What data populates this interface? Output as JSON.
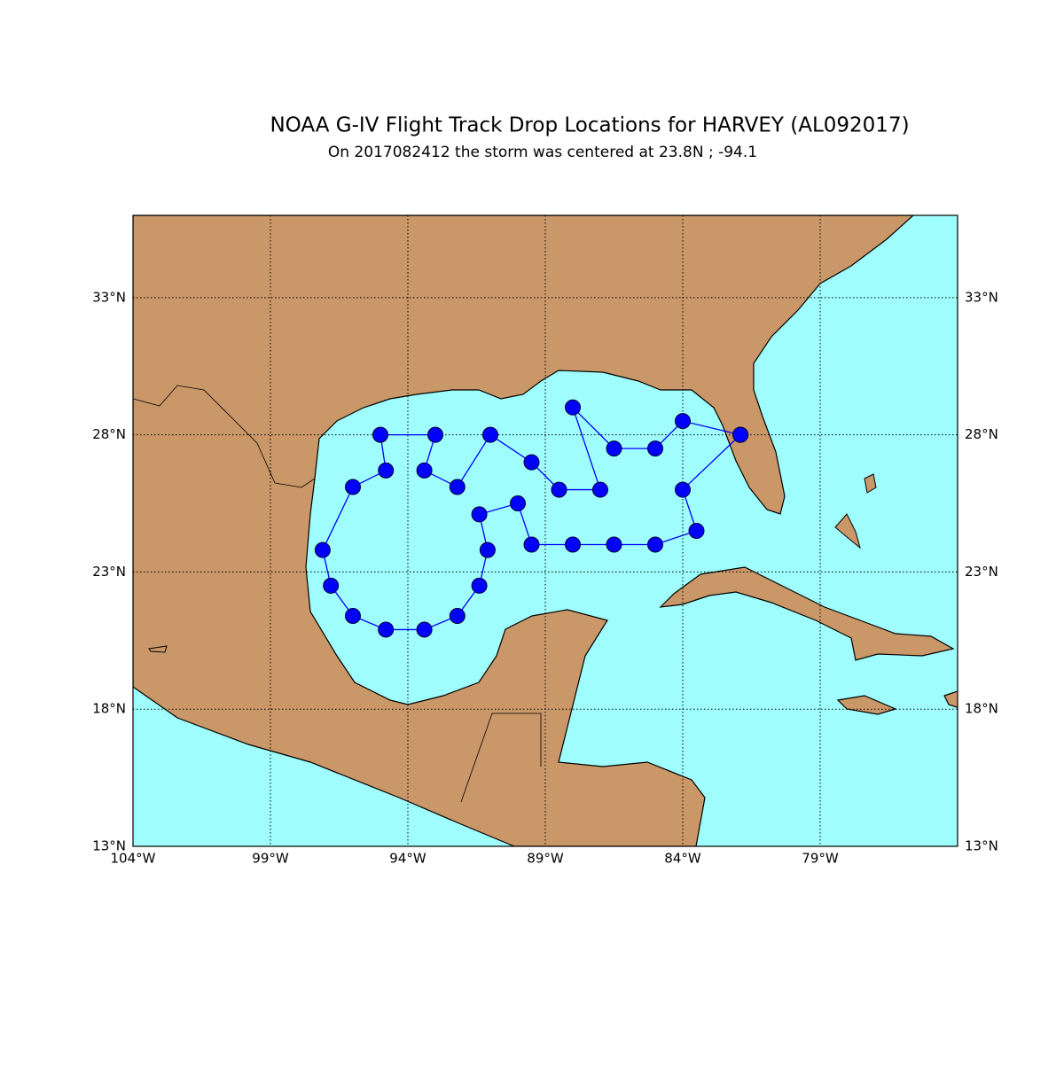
{
  "chart_data": {
    "type": "map",
    "title": "NOAA G-IV Flight Track Drop Locations for HARVEY (AL092017)",
    "subtitle": "On 2017082412 the storm was centered at 23.8N ; -94.1",
    "xlim": [
      -104,
      -74
    ],
    "ylim": [
      13,
      36
    ],
    "xticks": [
      {
        "value": -104,
        "label": "104°W"
      },
      {
        "value": -99,
        "label": "99°W"
      },
      {
        "value": -94,
        "label": "94°W"
      },
      {
        "value": -89,
        "label": "89°W"
      },
      {
        "value": -84,
        "label": "84°W"
      },
      {
        "value": -79,
        "label": "79°W"
      }
    ],
    "yticks": [
      {
        "value": 13,
        "label": "13°N"
      },
      {
        "value": 18,
        "label": "18°N"
      },
      {
        "value": 23,
        "label": "23°N"
      },
      {
        "value": 28,
        "label": "28°N"
      },
      {
        "value": 33,
        "label": "33°N"
      }
    ],
    "grid": true,
    "color": "#0000ff",
    "x": [
      -81.9,
      -84.0,
      -85.0,
      -86.5,
      -88.0,
      -87.0,
      -88.5,
      -89.5,
      -91.0,
      -92.2,
      -93.4,
      -93.0,
      -95.0,
      -94.8,
      -96.0,
      -97.1,
      -96.8,
      -96.0,
      -94.8,
      -93.4,
      -92.2,
      -91.4,
      -91.1,
      -91.4,
      -90.0,
      -89.5,
      -88.0,
      -86.5,
      -85.0,
      -83.5,
      -84.0,
      -81.9
    ],
    "values": [
      28.0,
      28.5,
      27.5,
      27.5,
      29.0,
      26.0,
      26.0,
      27.0,
      28.0,
      26.1,
      26.7,
      28.0,
      28.0,
      26.7,
      26.1,
      23.8,
      22.5,
      21.4,
      20.9,
      20.9,
      21.4,
      22.5,
      23.8,
      25.1,
      25.5,
      24.0,
      24.0,
      24.0,
      24.0,
      24.5,
      26.0,
      28.0
    ]
  }
}
